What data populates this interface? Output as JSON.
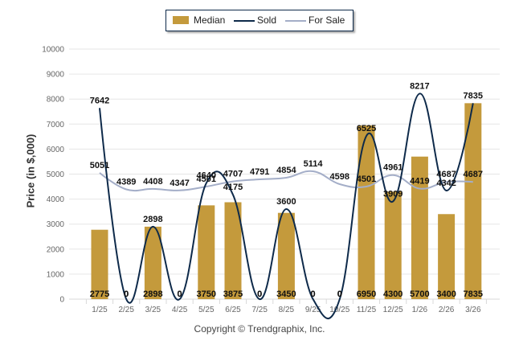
{
  "legend": {
    "items": [
      {
        "label": "Median",
        "type": "bar"
      },
      {
        "label": "Sold",
        "type": "line"
      },
      {
        "label": "For Sale",
        "type": "line"
      }
    ]
  },
  "footer": {
    "copyright": "Copyright © Trendgraphix, Inc."
  },
  "chart_data": {
    "type": "bar",
    "title": "",
    "xlabel": "",
    "ylabel": "Price (in $,000)",
    "ylim": [
      0,
      10000
    ],
    "yticks": [
      0,
      1000,
      2000,
      3000,
      4000,
      5000,
      6000,
      7000,
      8000,
      9000,
      10000
    ],
    "grid": true,
    "legend_position": "top-center",
    "categories": [
      "1/25",
      "2/25",
      "3/25",
      "4/25",
      "5/25",
      "6/25",
      "7/25",
      "8/25",
      "9/25",
      "10/25",
      "11/25",
      "12/25",
      "1/26",
      "2/26",
      "3/26"
    ],
    "series": [
      {
        "name": "Median",
        "type": "bar",
        "color": "#c49a3c",
        "values": [
          2775,
          0,
          2898,
          0,
          3750,
          3875,
          0,
          3450,
          0,
          0,
          6950,
          4300,
          5700,
          3400,
          7835
        ]
      },
      {
        "name": "Sold",
        "type": "spline",
        "color": "#0e2a4a",
        "values": [
          7642,
          0,
          2898,
          0,
          4640,
          4175,
          0,
          3600,
          0,
          0,
          6525,
          3909,
          8217,
          4342,
          7835
        ]
      },
      {
        "name": "For Sale",
        "type": "spline",
        "color": "#a4aec8",
        "values": [
          5051,
          4389,
          4408,
          4347,
          4501,
          4707,
          4791,
          4854,
          5114,
          4598,
          4501,
          4961,
          4419,
          4687,
          4687
        ]
      }
    ]
  }
}
